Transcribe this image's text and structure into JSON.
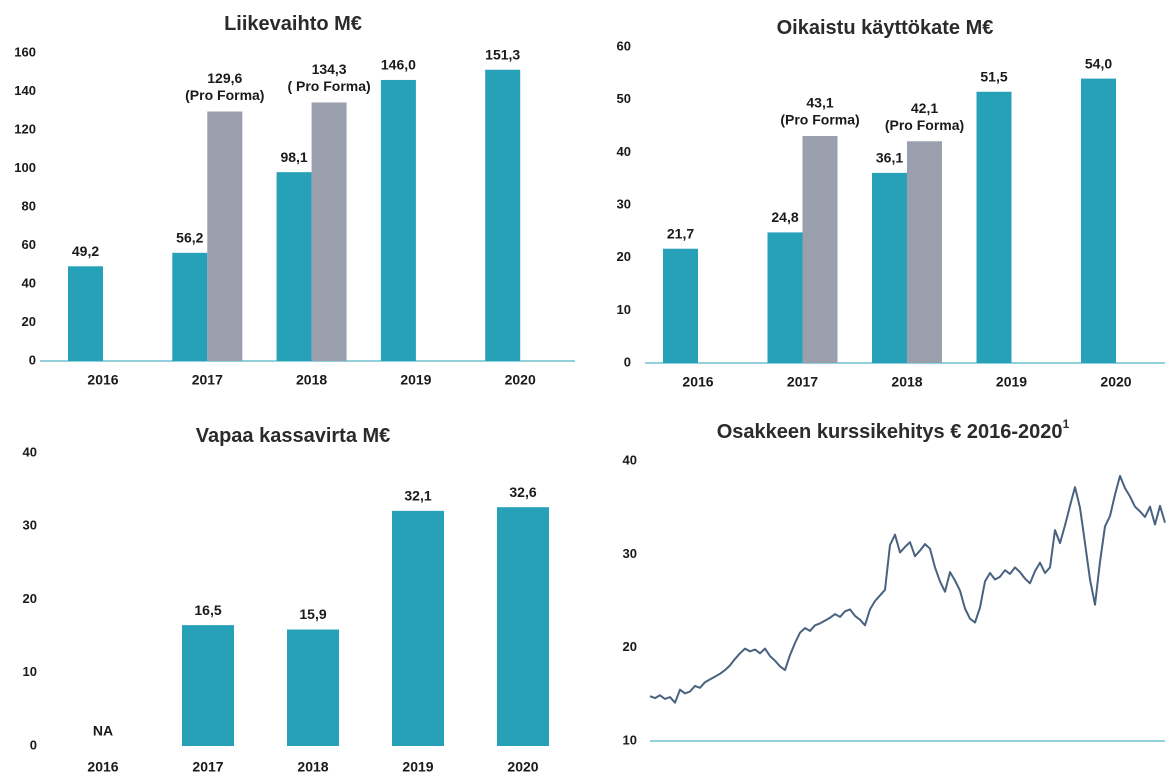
{
  "chart_data": [
    {
      "type": "bar",
      "title": "Liikevaihto M€",
      "categories": [
        "2016",
        "2017",
        "2018",
        "2019",
        "2020"
      ],
      "series": [
        {
          "color": "#26a1b8",
          "values": [
            49.2,
            56.2,
            98.1,
            146.0,
            151.3
          ],
          "value_labels": [
            "49,2",
            "56,2",
            "98,1",
            "146,0",
            "151,3"
          ]
        },
        {
          "color": "#9a9fad",
          "values": [
            null,
            129.6,
            134.3,
            null,
            null
          ],
          "value_labels": [
            null,
            "129,6",
            "134,3",
            null,
            null
          ],
          "value_notes": [
            null,
            "(Pro Forma)",
            "( Pro Forma)",
            null,
            null
          ]
        }
      ],
      "ylim": [
        0,
        160
      ],
      "yticks": [
        0,
        20,
        40,
        60,
        80,
        100,
        120,
        140,
        160
      ],
      "axis_line": true
    },
    {
      "type": "bar",
      "title": "Oikaistu käyttökate M€",
      "categories": [
        "2016",
        "2017",
        "2018",
        "2019",
        "2020"
      ],
      "series": [
        {
          "color": "#26a1b8",
          "values": [
            21.7,
            24.8,
            36.1,
            51.5,
            54.0
          ],
          "value_labels": [
            "21,7",
            "24,8",
            "36,1",
            "51,5",
            "54,0"
          ]
        },
        {
          "color": "#9a9fad",
          "values": [
            null,
            43.1,
            42.1,
            null,
            null
          ],
          "value_labels": [
            null,
            "43,1",
            "42,1",
            null,
            null
          ],
          "value_notes": [
            null,
            "(Pro Forma)",
            "(Pro Forma)",
            null,
            null
          ]
        }
      ],
      "ylim": [
        0,
        60
      ],
      "yticks": [
        0,
        10,
        20,
        30,
        40,
        50,
        60
      ],
      "axis_line": true
    },
    {
      "type": "bar",
      "title": "Vapaa kassavirta M€",
      "categories": [
        "2016",
        "2017",
        "2018",
        "2019",
        "2020"
      ],
      "color": "#26a1b8",
      "values": [
        null,
        16.5,
        15.9,
        32.1,
        32.6
      ],
      "value_labels": [
        "NA",
        "16,5",
        "15,9",
        "32,1",
        "32,6"
      ],
      "ylim": [
        0,
        40
      ],
      "yticks": [
        0,
        10,
        20,
        30,
        40
      ],
      "axis_line": false
    },
    {
      "type": "line",
      "title": "Osakkeen kurssikehitys € 2016-2020",
      "title_superscript": "1",
      "color": "#48627f",
      "axis_line": true,
      "values": [
        14.8,
        14.6,
        14.9,
        14.5,
        14.7,
        14.1,
        15.5,
        15.1,
        15.3,
        15.9,
        15.7,
        16.3,
        16.6,
        16.9,
        17.2,
        17.6,
        18.1,
        18.8,
        19.4,
        19.9,
        19.6,
        19.8,
        19.4,
        19.9,
        19.1,
        18.6,
        18.0,
        17.6,
        19.2,
        20.5,
        21.6,
        22.1,
        21.8,
        22.4,
        22.6,
        22.9,
        23.2,
        23.6,
        23.3,
        23.9,
        24.1,
        23.4,
        23.0,
        22.4,
        24.1,
        25.0,
        25.6,
        26.2,
        31.0,
        32.1,
        30.2,
        30.8,
        31.3,
        29.8,
        30.4,
        31.1,
        30.6,
        28.6,
        27.1,
        26.0,
        28.1,
        27.2,
        26.1,
        24.2,
        23.1,
        22.7,
        24.3,
        27.1,
        28.0,
        27.3,
        27.6,
        28.3,
        27.9,
        28.6,
        28.1,
        27.4,
        26.9,
        28.2,
        29.1,
        28.0,
        28.6,
        32.6,
        31.2,
        33.1,
        35.2,
        37.2,
        35.0,
        31.2,
        27.3,
        24.6,
        29.2,
        33.0,
        34.1,
        36.4,
        38.4,
        37.1,
        36.2,
        35.1,
        34.6,
        34.0,
        35.1,
        33.2,
        35.2,
        33.4
      ],
      "ylim": [
        10,
        40
      ],
      "yticks": [
        10,
        20,
        30,
        40
      ]
    }
  ]
}
